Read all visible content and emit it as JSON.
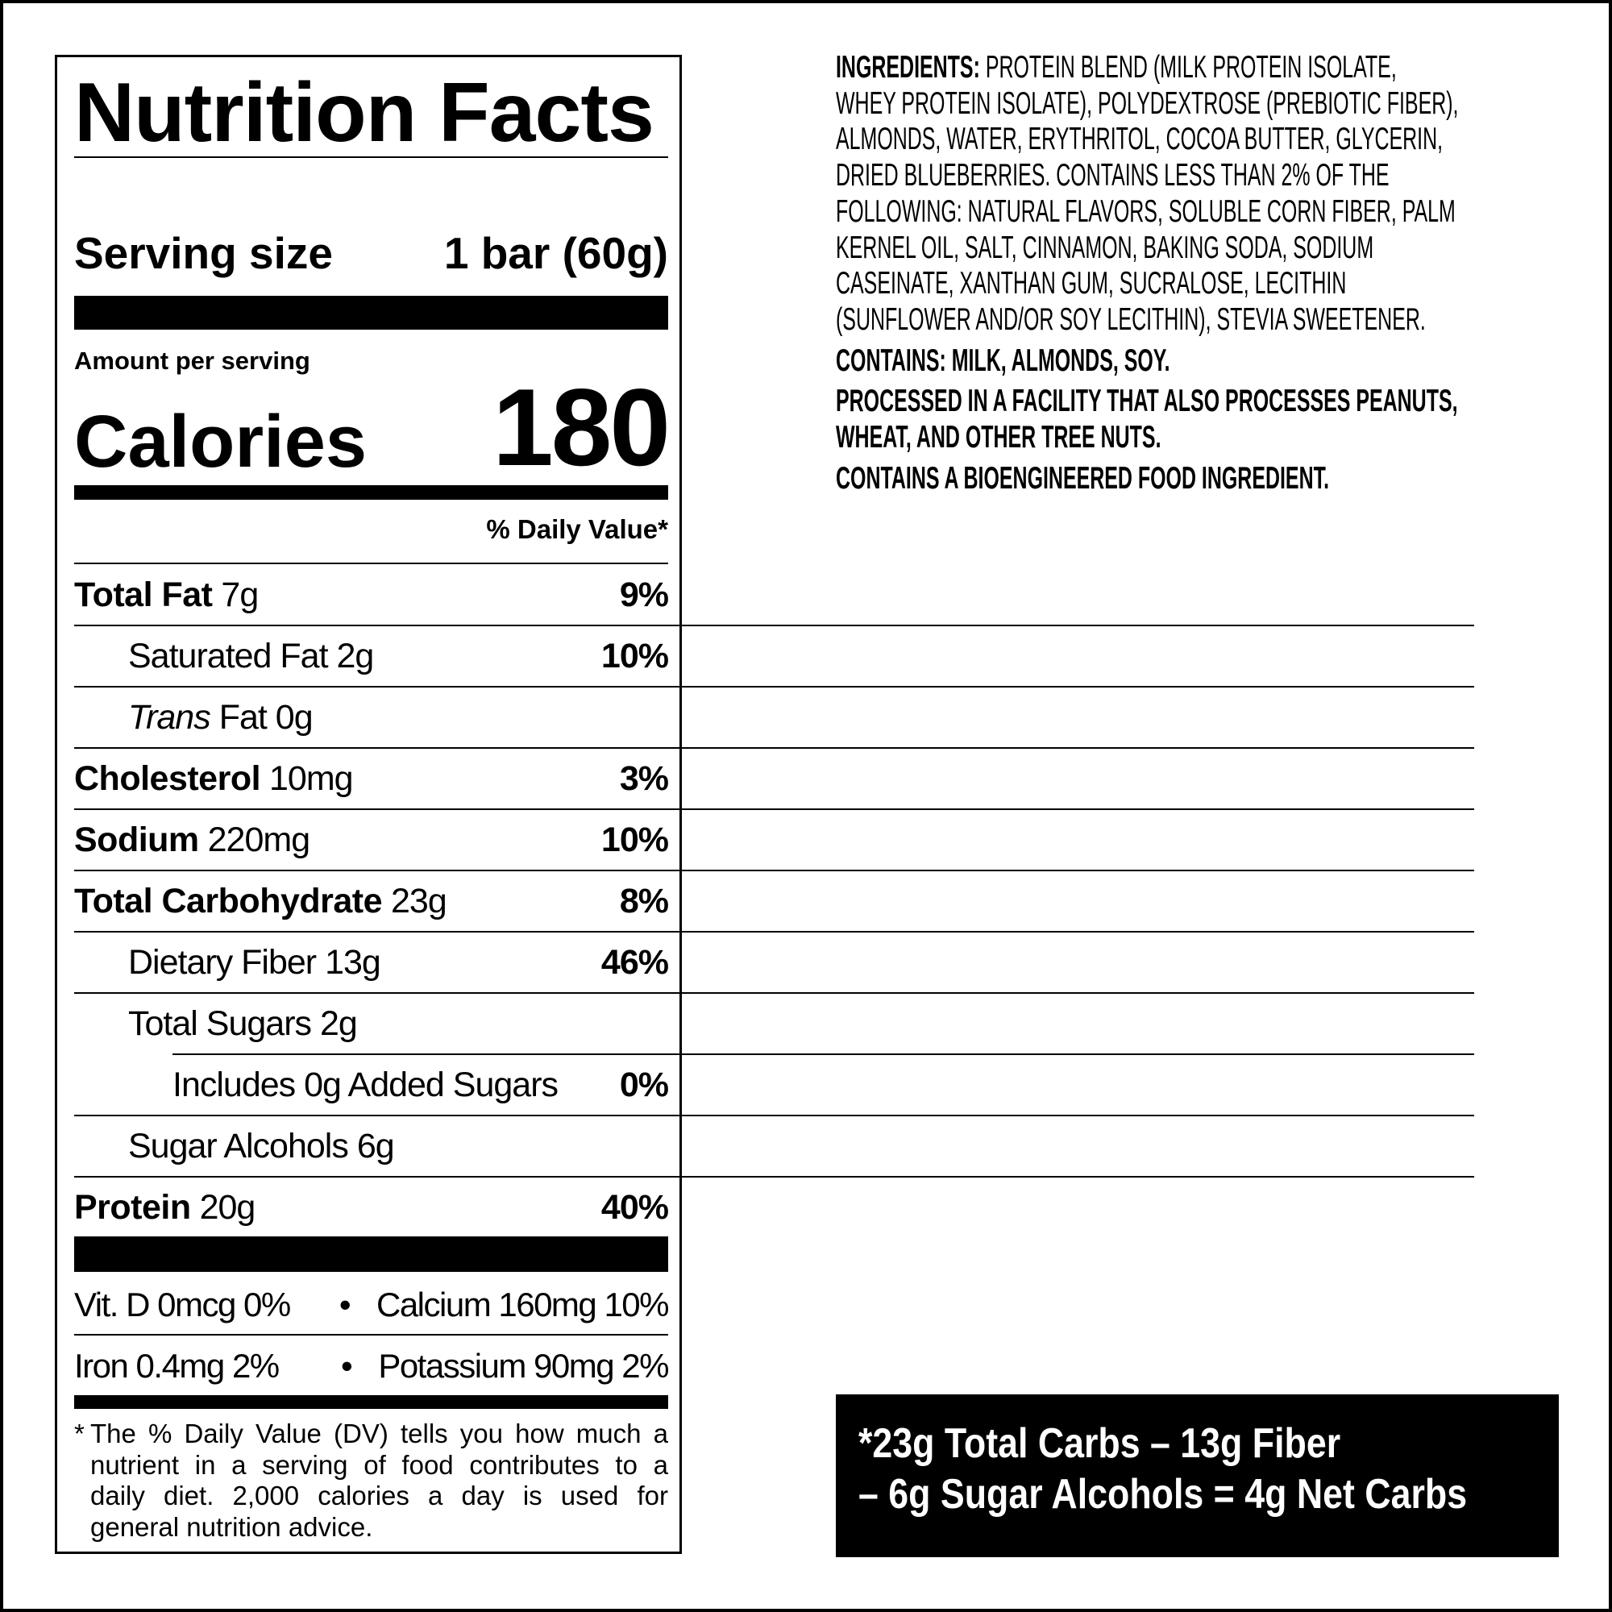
{
  "label": {
    "title": "Nutrition Facts",
    "serving_size_label": "Serving size",
    "serving_size_value": "1 bar (60g)",
    "amount_per_serving": "Amount per serving",
    "calories_label": "Calories",
    "calories_value": "180",
    "daily_value_header": "% Daily Value*",
    "rows": [
      {
        "label": "Total Fat",
        "amount": "7g",
        "dv": "9%",
        "bold": true,
        "indent": 0
      },
      {
        "label": "Saturated Fat",
        "amount": "2g",
        "dv": "10%",
        "bold": false,
        "indent": 1
      },
      {
        "label_italic": "Trans",
        "label": "Fat",
        "amount": "0g",
        "dv": "",
        "bold": false,
        "indent": 1
      },
      {
        "label": "Cholesterol",
        "amount": "10mg",
        "dv": "3%",
        "bold": true,
        "indent": 0
      },
      {
        "label": "Sodium",
        "amount": "220mg",
        "dv": "10%",
        "bold": true,
        "indent": 0
      },
      {
        "label": "Total Carbohydrate",
        "amount": "23g",
        "dv": "8%",
        "bold": true,
        "indent": 0
      },
      {
        "label": "Dietary Fiber",
        "amount": "13g",
        "dv": "46%",
        "bold": false,
        "indent": 1
      },
      {
        "label": "Total Sugars",
        "amount": "2g",
        "dv": "",
        "bold": false,
        "indent": 1
      },
      {
        "label": "Includes 0g Added Sugars",
        "amount": "",
        "dv": "0%",
        "bold": false,
        "indent": 2
      },
      {
        "label": "Sugar Alcohols",
        "amount": "6g",
        "dv": "",
        "bold": false,
        "indent": 1
      },
      {
        "label": "Protein",
        "amount": "20g",
        "dv": "40%",
        "bold": true,
        "indent": 0
      }
    ],
    "vitamins": [
      {
        "left": "Vit. D 0mcg 0%",
        "sep": "•",
        "right": "Calcium 160mg 10%"
      },
      {
        "left": "Iron 0.4mg 2%",
        "sep": "•",
        "right": "Potassium 90mg 2%"
      }
    ],
    "footnote": {
      "asterisk": "*",
      "lines": [
        "The % Daily Value (DV) tells you how much a",
        "nutrient in a serving of food contributes to a",
        "daily diet. 2,000 calories a day is used for",
        "general nutrition advice."
      ]
    }
  },
  "ingredients": {
    "heading": "INGREDIENTS:",
    "lines": [
      "PROTEIN BLEND (MILK PROTEIN ISOLATE,",
      "WHEY PROTEIN ISOLATE), POLYDEXTROSE (PREBIOTIC FIBER),",
      "ALMONDS, WATER, ERYTHRITOL, COCOA BUTTER, GLYCERIN,",
      "DRIED BLUEBERRIES. CONTAINS LESS THAN 2% OF THE",
      "FOLLOWING: NATURAL FLAVORS, SOLUBLE CORN FIBER, PALM",
      "KERNEL OIL, SALT, CINNAMON, BAKING SODA, SODIUM",
      "CASEINATE, XANTHAN GUM, SUCRALOSE, LECITHIN",
      "(SUNFLOWER AND/OR SOY LECITHIN), STEVIA SWEETENER."
    ],
    "contains": "CONTAINS: MILK, ALMONDS, SOY.",
    "facility_lines": [
      "PROCESSED IN A FACILITY THAT ALSO PROCESSES PEANUTS,",
      "WHEAT, AND OTHER TREE NUTS."
    ],
    "bioengineered": "CONTAINS A BIOENGINEERED FOOD INGREDIENT."
  },
  "net_carbs": {
    "lines": [
      "*23g Total Carbs – 13g Fiber",
      "– 6g Sugar Alcohols = 4g Net Carbs"
    ]
  }
}
